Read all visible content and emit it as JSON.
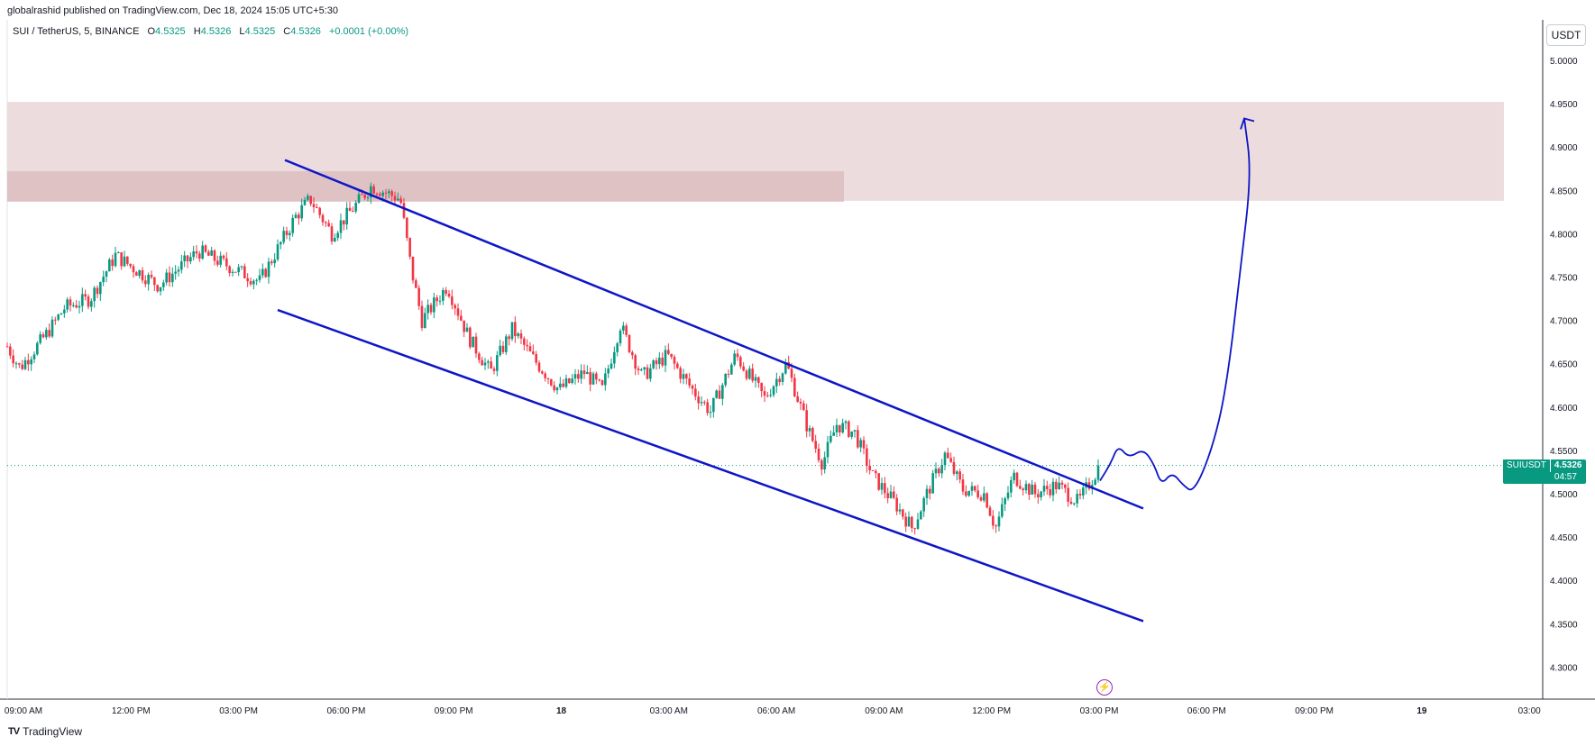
{
  "header": {
    "published": "globalrashid published on TradingView.com, Dec 18, 2024 15:05 UTC+5:30",
    "symbol": "SUI / TetherUS, 5, BINANCE",
    "o_label": "O",
    "o_value": "4.5325",
    "h_label": "H",
    "h_value": "4.5326",
    "l_label": "L",
    "l_value": "4.5325",
    "c_label": "C",
    "c_value": "4.5326",
    "change": "+0.0001 (+0.00%)"
  },
  "unit_label": "USDT",
  "price_tag": {
    "symbol": "SUIUSDT",
    "price": "4.5326",
    "countdown": "04:57"
  },
  "brand": {
    "logo": "TV",
    "name": "TradingView"
  },
  "icons": {
    "alert": "lightning-icon"
  },
  "colors": {
    "up": "#089981",
    "down": "#f23645",
    "channel": "#0d16c7",
    "zone_light": "#ecdcdd",
    "zone_dark": "#dfc2c3",
    "price_line": "#089981"
  },
  "chart_data": {
    "type": "candlestick",
    "title": "",
    "y_ticks": [
      "5.0000",
      "4.9500",
      "4.9000",
      "4.8500",
      "4.8000",
      "4.7500",
      "4.7000",
      "4.6500",
      "4.6000",
      "4.5500",
      "4.5000",
      "4.4500",
      "4.4000",
      "4.3500",
      "4.3000"
    ],
    "x_ticks": [
      "09:00 AM",
      "12:00 PM",
      "03:00 PM",
      "06:00 PM",
      "09:00 PM",
      "18",
      "03:00 AM",
      "06:00 AM",
      "09:00 AM",
      "12:00 PM",
      "03:00 PM",
      "06:00 PM",
      "09:00 PM",
      "19",
      "03:00"
    ],
    "ylim": [
      4.27,
      5.04
    ],
    "last_price": 4.5326,
    "series": [
      {
        "close_path": [
          {
            "t": 0,
            "p": 4.67
          },
          {
            "t": 0.35,
            "p": 4.645
          },
          {
            "t": 1.1,
            "p": 4.685
          },
          {
            "t": 1.6,
            "p": 4.715
          },
          {
            "t": 2.3,
            "p": 4.725
          },
          {
            "t": 3.0,
            "p": 4.775
          },
          {
            "t": 4.2,
            "p": 4.74
          },
          {
            "t": 5.3,
            "p": 4.78
          },
          {
            "t": 7.0,
            "p": 4.745
          },
          {
            "t": 8.0,
            "p": 4.82
          },
          {
            "t": 8.4,
            "p": 4.84
          },
          {
            "t": 9.0,
            "p": 4.8
          },
          {
            "t": 10.1,
            "p": 4.855
          },
          {
            "t": 10.9,
            "p": 4.84
          },
          {
            "t": 11.2,
            "p": 4.76
          },
          {
            "t": 11.5,
            "p": 4.7
          },
          {
            "t": 12.2,
            "p": 4.74
          },
          {
            "t": 12.8,
            "p": 4.68
          },
          {
            "t": 13.4,
            "p": 4.64
          },
          {
            "t": 14.0,
            "p": 4.69
          },
          {
            "t": 14.6,
            "p": 4.655
          },
          {
            "t": 15.3,
            "p": 4.62
          },
          {
            "t": 16.0,
            "p": 4.64
          },
          {
            "t": 16.5,
            "p": 4.62
          },
          {
            "t": 17.0,
            "p": 4.695
          },
          {
            "t": 17.6,
            "p": 4.635
          },
          {
            "t": 18.3,
            "p": 4.66
          },
          {
            "t": 19.0,
            "p": 4.62
          },
          {
            "t": 19.5,
            "p": 4.595
          },
          {
            "t": 20.2,
            "p": 4.66
          },
          {
            "t": 21.0,
            "p": 4.61
          },
          {
            "t": 21.6,
            "p": 4.65
          },
          {
            "t": 22.2,
            "p": 4.575
          },
          {
            "t": 22.6,
            "p": 4.535
          },
          {
            "t": 23.0,
            "p": 4.58
          },
          {
            "t": 23.5,
            "p": 4.57
          },
          {
            "t": 24.0,
            "p": 4.52
          },
          {
            "t": 24.6,
            "p": 4.49
          },
          {
            "t": 25.1,
            "p": 4.46
          },
          {
            "t": 25.5,
            "p": 4.5
          },
          {
            "t": 26.0,
            "p": 4.545
          },
          {
            "t": 26.5,
            "p": 4.505
          },
          {
            "t": 27.1,
            "p": 4.5
          },
          {
            "t": 27.4,
            "p": 4.46
          },
          {
            "t": 27.9,
            "p": 4.52
          },
          {
            "t": 28.5,
            "p": 4.5
          },
          {
            "t": 29.1,
            "p": 4.51
          },
          {
            "t": 29.7,
            "p": 4.49
          },
          {
            "t": 30.3,
            "p": 4.5326
          }
        ]
      }
    ],
    "channel_upper": {
      "from": {
        "t": 7.7,
        "p": 4.885
      },
      "to": {
        "t": 31.5,
        "p": 4.483
      }
    },
    "channel_lower": {
      "from": {
        "t": 7.5,
        "p": 4.712
      },
      "to": {
        "t": 31.5,
        "p": 4.353
      }
    },
    "zone_wide": {
      "t0": 0,
      "t1": 41.5,
      "p_top": 4.952,
      "p_bottom": 4.838
    },
    "zone_narrow": {
      "t0": 0,
      "t1": 23.2,
      "p_top": 4.872,
      "p_bottom": 4.837
    },
    "projection": [
      {
        "t": 30.3,
        "p": 4.515
      },
      {
        "t": 30.6,
        "p": 4.535
      },
      {
        "t": 30.8,
        "p": 4.556
      },
      {
        "t": 31.1,
        "p": 4.541
      },
      {
        "t": 31.5,
        "p": 4.552
      },
      {
        "t": 31.8,
        "p": 4.534
      },
      {
        "t": 32.0,
        "p": 4.51
      },
      {
        "t": 32.3,
        "p": 4.525
      },
      {
        "t": 32.6,
        "p": 4.51
      },
      {
        "t": 32.9,
        "p": 4.501
      },
      {
        "t": 33.4,
        "p": 4.55
      },
      {
        "t": 33.8,
        "p": 4.62
      },
      {
        "t": 34.2,
        "p": 4.76
      },
      {
        "t": 34.5,
        "p": 4.87
      },
      {
        "t": 34.3,
        "p": 4.933
      }
    ]
  }
}
